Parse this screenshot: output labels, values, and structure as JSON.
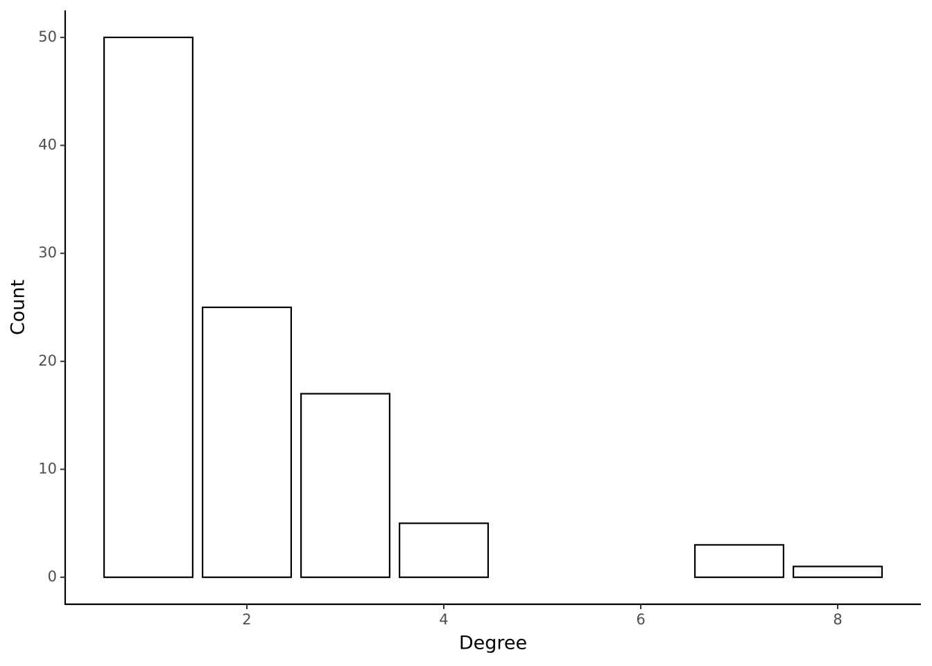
{
  "chart_data": {
    "type": "bar",
    "x_label": "Degree",
    "y_label": "Count",
    "x": [
      1,
      2,
      3,
      4,
      7,
      8
    ],
    "values": [
      50,
      25,
      17,
      5,
      3,
      1
    ],
    "color": "#ffffff",
    "edge_color": "#000000",
    "xlim": [
      0.155,
      8.845
    ],
    "xticks": [
      2,
      4,
      6,
      8
    ],
    "ylim": [
      -2.5,
      52.5
    ],
    "yticks": [
      0,
      10,
      20,
      30,
      40,
      50
    ],
    "grid": false
  }
}
